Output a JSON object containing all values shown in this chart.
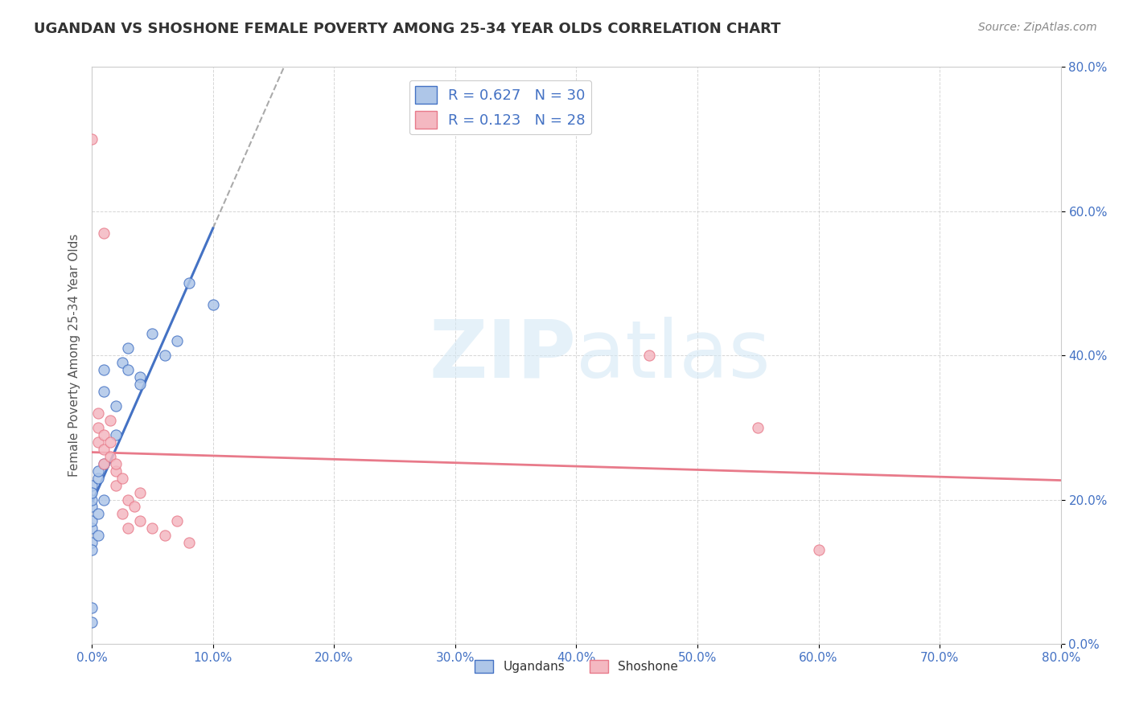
{
  "title": "UGANDAN VS SHOSHONE FEMALE POVERTY AMONG 25-34 YEAR OLDS CORRELATION CHART",
  "source": "Source: ZipAtlas.com",
  "ylabel": "Female Poverty Among 25-34 Year Olds",
  "xlabel": "",
  "xlim": [
    0.0,
    0.8
  ],
  "ylim": [
    0.0,
    0.8
  ],
  "xtick_labels": [
    "0.0%",
    "10.0%",
    "20.0%",
    "30.0%",
    "40.0%",
    "50.0%",
    "60.0%",
    "70.0%",
    "80.0%"
  ],
  "ytick_labels": [
    "0.0%",
    "20.0%",
    "40.0%",
    "60.0%",
    "80.0%"
  ],
  "ugandan_color": "#aec6e8",
  "shoshone_color": "#f4b8c1",
  "ugandan_line_color": "#4472c4",
  "shoshone_line_color": "#e87a8a",
  "r_ugandan": 0.627,
  "n_ugandan": 30,
  "r_shoshone": 0.123,
  "n_shoshone": 28,
  "legend_text_color": "#4472c4",
  "watermark_zip": "ZIP",
  "watermark_atlas": "atlas",
  "background_color": "#ffffff",
  "ugandan_scatter": [
    [
      0.0,
      0.14
    ],
    [
      0.0,
      0.13
    ],
    [
      0.0,
      0.16
    ],
    [
      0.0,
      0.19
    ],
    [
      0.0,
      0.2
    ],
    [
      0.0,
      0.22
    ],
    [
      0.0,
      0.17
    ],
    [
      0.0,
      0.21
    ],
    [
      0.005,
      0.15
    ],
    [
      0.005,
      0.18
    ],
    [
      0.005,
      0.23
    ],
    [
      0.005,
      0.24
    ],
    [
      0.01,
      0.25
    ],
    [
      0.01,
      0.2
    ],
    [
      0.01,
      0.38
    ],
    [
      0.01,
      0.35
    ],
    [
      0.02,
      0.29
    ],
    [
      0.02,
      0.33
    ],
    [
      0.025,
      0.39
    ],
    [
      0.03,
      0.41
    ],
    [
      0.03,
      0.38
    ],
    [
      0.04,
      0.37
    ],
    [
      0.04,
      0.36
    ],
    [
      0.05,
      0.43
    ],
    [
      0.06,
      0.4
    ],
    [
      0.07,
      0.42
    ],
    [
      0.08,
      0.5
    ],
    [
      0.1,
      0.47
    ],
    [
      0.0,
      0.05
    ],
    [
      0.0,
      0.03
    ]
  ],
  "shoshone_scatter": [
    [
      0.0,
      0.7
    ],
    [
      0.01,
      0.57
    ],
    [
      0.005,
      0.28
    ],
    [
      0.005,
      0.3
    ],
    [
      0.005,
      0.32
    ],
    [
      0.01,
      0.25
    ],
    [
      0.01,
      0.27
    ],
    [
      0.01,
      0.29
    ],
    [
      0.015,
      0.28
    ],
    [
      0.015,
      0.31
    ],
    [
      0.015,
      0.26
    ],
    [
      0.02,
      0.24
    ],
    [
      0.02,
      0.22
    ],
    [
      0.02,
      0.25
    ],
    [
      0.025,
      0.23
    ],
    [
      0.025,
      0.18
    ],
    [
      0.03,
      0.2
    ],
    [
      0.03,
      0.16
    ],
    [
      0.035,
      0.19
    ],
    [
      0.04,
      0.17
    ],
    [
      0.04,
      0.21
    ],
    [
      0.05,
      0.16
    ],
    [
      0.06,
      0.15
    ],
    [
      0.07,
      0.17
    ],
    [
      0.08,
      0.14
    ],
    [
      0.46,
      0.4
    ],
    [
      0.55,
      0.3
    ],
    [
      0.6,
      0.13
    ]
  ]
}
